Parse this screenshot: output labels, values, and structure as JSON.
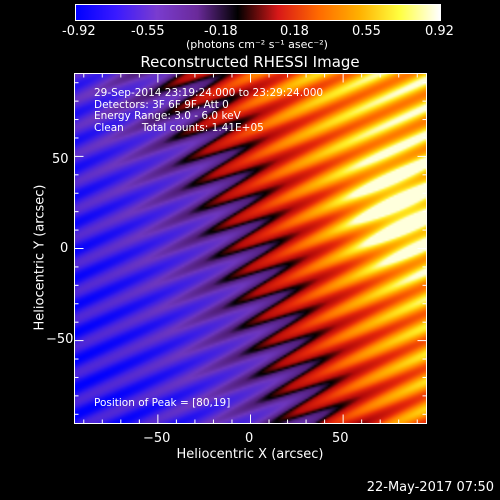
{
  "colorbar": {
    "ticks": [
      "-0.92",
      "-0.55",
      "-0.18",
      "0.18",
      "0.55",
      "0.92"
    ],
    "unit": "(photons cm⁻² s⁻¹ asec⁻²)",
    "colors": [
      "#0000ff",
      "#3a1aff",
      "#7a3ccf",
      "#6a2a9a",
      "#000000",
      "#d81818",
      "#ff6a00",
      "#ffb000",
      "#ffff40",
      "#ffffff"
    ]
  },
  "title": "Reconstructed RHESSI Image",
  "info": {
    "line1": "29-Sep-2014 23:19:24.000 to 23:29:24.000",
    "line2": "Detectors: 3F 6F 9F, Att 0",
    "line3": "Energy Range: 3.0 - 6.0 keV",
    "line4_a": "Clean",
    "line4_b": "Total counts: 1.41E+05"
  },
  "peak": "Position of Peak = [80,19]",
  "timestamp": "22-May-2017 07:50",
  "chart_data": {
    "type": "heatmap",
    "title": "Reconstructed RHESSI Image",
    "xlabel": "Heliocentric X (arcsec)",
    "ylabel": "Heliocentric Y (arcsec)",
    "xlim": [
      -95,
      95
    ],
    "ylim": [
      -95,
      95
    ],
    "x_ticks": [
      -50,
      0,
      50
    ],
    "y_ticks": [
      50,
      0,
      -50
    ],
    "x_tick_labels": [
      "−50",
      "0",
      "50"
    ],
    "y_tick_labels": [
      "50",
      "0",
      "−50"
    ],
    "colorbar_range": [
      -0.92,
      0.92
    ],
    "peak": [
      80,
      19
    ]
  }
}
